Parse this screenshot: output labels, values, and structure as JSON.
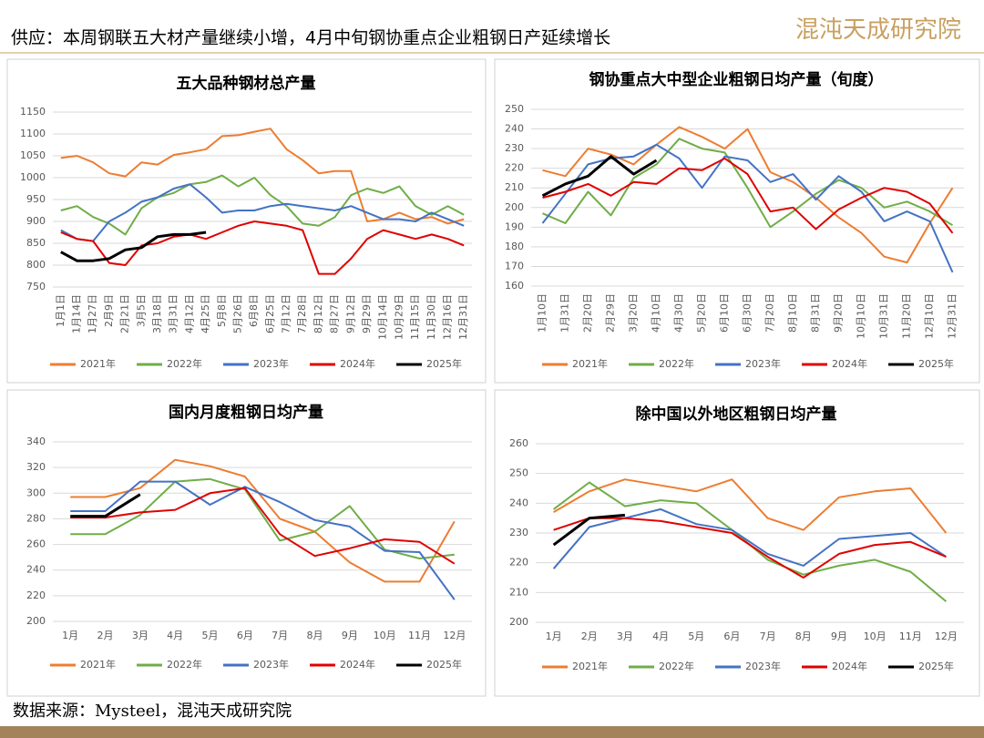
{
  "header": {
    "title": "供应：本周钢联五大材产量继续小增，4月中旬钢协重点企业粗钢日产延续增长",
    "logo": "混沌天成研究院"
  },
  "source": "数据来源：Mysteel，混沌天成研究院",
  "chart_data": [
    {
      "type": "line",
      "title": "五大品种钢材总产量",
      "categories": [
        "1月1日",
        "1月14日",
        "1月27日",
        "2月9日",
        "2月21日",
        "3月5日",
        "3月18日",
        "3月31日",
        "4月12日",
        "4月25日",
        "5月8日",
        "5月26日",
        "6月8日",
        "6月25日",
        "7月12日",
        "7月28日",
        "8月12日",
        "8月27日",
        "9月12日",
        "9月29日",
        "10月14日",
        "10月29日",
        "11月15日",
        "11月30日",
        "12月16日",
        "12月31日"
      ],
      "ylim": [
        750,
        1150
      ],
      "yticks": [
        750,
        800,
        850,
        900,
        950,
        1000,
        1050,
        1100,
        1150
      ],
      "grid": true,
      "series": [
        {
          "name": "2021年",
          "color": "#ed7d31",
          "values": [
            1045,
            1050,
            1035,
            1010,
            1003,
            1035,
            1030,
            1052,
            1058,
            1065,
            1095,
            1097,
            1105,
            1112,
            1065,
            1040,
            1010,
            1015,
            1015,
            900,
            905,
            920,
            905,
            910,
            895,
            905
          ]
        },
        {
          "name": "2022年",
          "color": "#70ad47",
          "values": [
            925,
            935,
            910,
            895,
            870,
            930,
            955,
            965,
            985,
            990,
            1005,
            980,
            1000,
            960,
            935,
            895,
            890,
            910,
            960,
            975,
            965,
            980,
            935,
            915,
            935,
            915
          ]
        },
        {
          "name": "2023年",
          "color": "#4472c4",
          "values": [
            880,
            860,
            855,
            900,
            920,
            945,
            955,
            975,
            985,
            955,
            920,
            925,
            925,
            935,
            940,
            935,
            930,
            925,
            935,
            920,
            905,
            905,
            900,
            920,
            905,
            890
          ]
        },
        {
          "name": "2024年",
          "color": "#e00000",
          "values": [
            875,
            860,
            855,
            805,
            800,
            845,
            850,
            865,
            870,
            860,
            875,
            890,
            900,
            895,
            890,
            880,
            780,
            780,
            815,
            860,
            880,
            870,
            860,
            870,
            860,
            845
          ]
        },
        {
          "name": "2025年",
          "color": "#000000",
          "values": [
            830,
            810,
            810,
            815,
            835,
            840,
            865,
            870,
            870,
            875,
            null,
            null,
            null,
            null,
            null,
            null,
            null,
            null,
            null,
            null,
            null,
            null,
            null,
            null,
            null,
            null
          ]
        }
      ]
    },
    {
      "type": "line",
      "title": "钢协重点大中型企业粗钢日均产量（旬度）",
      "categories": [
        "1月10日",
        "1月31日",
        "2月20日",
        "2月29日",
        "3月20日",
        "4月10日",
        "4月30日",
        "5月20日",
        "6月10日",
        "6月30日",
        "7月20日",
        "8月10日",
        "8月31日",
        "9月20日",
        "10月10日",
        "10月31日",
        "11月20日",
        "12月10日",
        "12月31日"
      ],
      "ylim": [
        160,
        250
      ],
      "yticks": [
        160,
        170,
        180,
        190,
        200,
        210,
        220,
        230,
        240,
        250
      ],
      "grid": true,
      "series": [
        {
          "name": "2021年",
          "color": "#ed7d31",
          "values": [
            219,
            216,
            230,
            227,
            222,
            232,
            241,
            236,
            230,
            240,
            218,
            213,
            205,
            195,
            187,
            175,
            172,
            192,
            210
          ]
        },
        {
          "name": "2022年",
          "color": "#70ad47",
          "values": [
            197,
            192,
            208,
            196,
            215,
            222,
            235,
            230,
            228,
            210,
            190,
            198,
            207,
            214,
            210,
            200,
            203,
            198,
            191
          ]
        },
        {
          "name": "2023年",
          "color": "#4472c4",
          "values": [
            192,
            207,
            222,
            225,
            226,
            232,
            225,
            210,
            226,
            224,
            213,
            217,
            204,
            216,
            208,
            193,
            198,
            193,
            167
          ]
        },
        {
          "name": "2024年",
          "color": "#e00000",
          "values": [
            205,
            208,
            212,
            206,
            213,
            212,
            220,
            219,
            225,
            217,
            198,
            200,
            189,
            199,
            205,
            210,
            208,
            202,
            187
          ]
        },
        {
          "name": "2025年",
          "color": "#000000",
          "values": [
            206,
            212,
            216,
            226,
            217,
            224,
            null,
            null,
            null,
            null,
            null,
            null,
            null,
            null,
            null,
            null,
            null,
            null,
            null
          ]
        }
      ]
    },
    {
      "type": "line",
      "title": "国内月度粗钢日均产量",
      "categories": [
        "1月",
        "2月",
        "3月",
        "4月",
        "5月",
        "6月",
        "7月",
        "8月",
        "9月",
        "10月",
        "11月",
        "12月"
      ],
      "ylim": [
        200,
        340
      ],
      "yticks": [
        200,
        220,
        240,
        260,
        280,
        300,
        320,
        340
      ],
      "grid": true,
      "series": [
        {
          "name": "2021年",
          "color": "#ed7d31",
          "values": [
            297,
            297,
            304,
            326,
            321,
            313,
            280,
            270,
            246,
            231,
            231,
            278
          ]
        },
        {
          "name": "2022年",
          "color": "#70ad47",
          "values": [
            268,
            268,
            283,
            309,
            311,
            303,
            263,
            270,
            290,
            256,
            249,
            252
          ]
        },
        {
          "name": "2023年",
          "color": "#4472c4",
          "values": [
            286,
            286,
            309,
            309,
            291,
            305,
            293,
            279,
            274,
            255,
            254,
            217
          ]
        },
        {
          "name": "2024年",
          "color": "#e00000",
          "values": [
            281,
            281,
            285,
            287,
            300,
            304,
            268,
            251,
            257,
            264,
            262,
            245
          ]
        },
        {
          "name": "2025年",
          "color": "#000000",
          "values": [
            282,
            282,
            299,
            null,
            null,
            null,
            null,
            null,
            null,
            null,
            null,
            null
          ]
        }
      ]
    },
    {
      "type": "line",
      "title": "除中国以外地区粗钢日均产量",
      "categories": [
        "1月",
        "2月",
        "3月",
        "4月",
        "5月",
        "6月",
        "7月",
        "8月",
        "9月",
        "10月",
        "11月",
        "12月"
      ],
      "ylim": [
        200,
        260
      ],
      "yticks": [
        200,
        210,
        220,
        230,
        240,
        250,
        260
      ],
      "grid": true,
      "series": [
        {
          "name": "2021年",
          "color": "#ed7d31",
          "values": [
            237,
            244,
            248,
            246,
            244,
            248,
            235,
            231,
            242,
            244,
            245,
            230
          ]
        },
        {
          "name": "2022年",
          "color": "#70ad47",
          "values": [
            238,
            247,
            239,
            241,
            240,
            231,
            221,
            216,
            219,
            221,
            217,
            207
          ]
        },
        {
          "name": "2023年",
          "color": "#4472c4",
          "values": [
            218,
            232,
            235,
            238,
            233,
            231,
            223,
            219,
            228,
            229,
            230,
            222
          ]
        },
        {
          "name": "2024年",
          "color": "#e00000",
          "values": [
            231,
            235,
            235,
            234,
            232,
            230,
            222,
            215,
            223,
            226,
            227,
            222
          ]
        },
        {
          "name": "2025年",
          "color": "#000000",
          "values": [
            226,
            235,
            236,
            null,
            null,
            null,
            null,
            null,
            null,
            null,
            null,
            null
          ]
        }
      ]
    }
  ]
}
